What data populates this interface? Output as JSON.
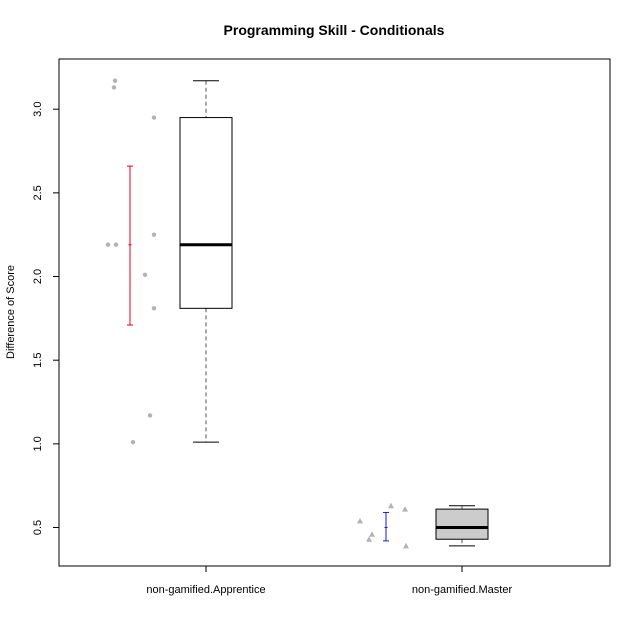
{
  "chart_data": {
    "type": "box",
    "title": "Programming Skill - Conditionals",
    "xlabel": "",
    "ylabel": "Difference of Score",
    "ylim": [
      0.27,
      3.3
    ],
    "yticks": [
      "0.5",
      "1.0",
      "1.5",
      "2.0",
      "2.5",
      "3.0"
    ],
    "ytick_values": [
      0.5,
      1.0,
      1.5,
      2.0,
      2.5,
      3.0
    ],
    "categories": [
      "non-gamified.Apprentice",
      "non-gamified.Master"
    ],
    "groups": [
      {
        "name": "non-gamified.Apprentice",
        "points": [
          3.17,
          3.13,
          2.95,
          2.19,
          2.19,
          2.25,
          2.01,
          1.81,
          1.17,
          1.01
        ],
        "point_shape": "circle",
        "mean": 2.19,
        "mean_ci": [
          1.71,
          2.66
        ],
        "ci_color": "#e0001a",
        "box": {
          "min": 1.01,
          "q1": 1.81,
          "median": 2.19,
          "q3": 2.95,
          "max": 3.17
        },
        "box_fill": "#ffffff"
      },
      {
        "name": "non-gamified.Master",
        "points": [
          0.54,
          0.46,
          0.43,
          0.63,
          0.61,
          0.39
        ],
        "point_shape": "triangle",
        "mean": 0.5,
        "mean_ci": [
          0.42,
          0.59
        ],
        "ci_color": "#1a1adc",
        "box": {
          "min": 0.39,
          "q1": 0.43,
          "median": 0.5,
          "q3": 0.61,
          "max": 0.63
        },
        "box_fill": "#cccccc"
      }
    ],
    "point_color": "#b3b3b3"
  }
}
